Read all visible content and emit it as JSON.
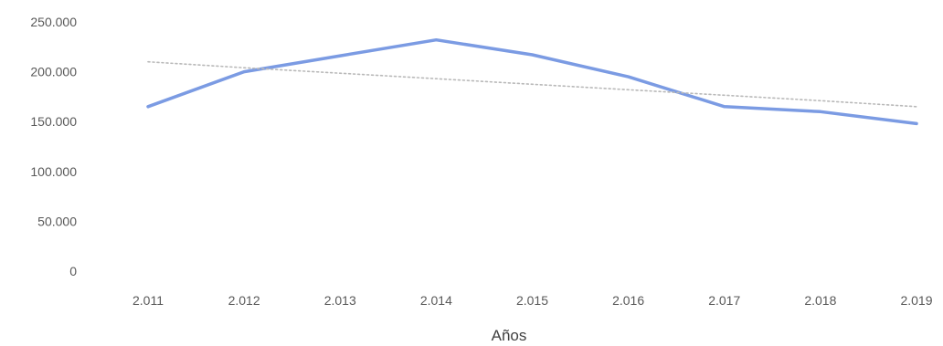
{
  "chart_data": {
    "type": "line",
    "title": "",
    "xlabel": "Años",
    "ylabel": "",
    "categories": [
      "2.011",
      "2.012",
      "2.013",
      "2.014",
      "2.015",
      "2.016",
      "2.017",
      "2.018",
      "2.019"
    ],
    "series": [
      {
        "values": [
          165000,
          200000,
          216000,
          232000,
          217000,
          195000,
          165000,
          160000,
          148000
        ],
        "color": "#7b9be3"
      },
      {
        "trendline": true,
        "values": [
          210000,
          204000,
          198500,
          193000,
          187500,
          182000,
          176500,
          171000,
          165000
        ],
        "color": "#b9b9b9"
      }
    ],
    "ylim": [
      0,
      250000
    ],
    "yticks": [
      "0",
      "50.000",
      "100.000",
      "150.000",
      "200.000",
      "250.000"
    ],
    "grid": false,
    "legend": "none"
  }
}
